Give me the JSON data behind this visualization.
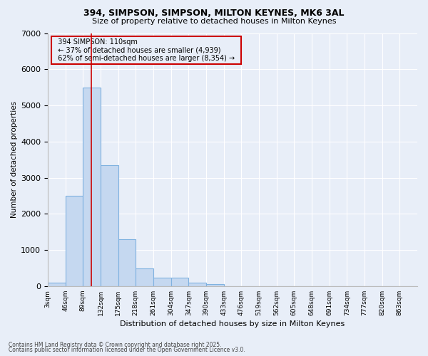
{
  "title_line1": "394, SIMPSON, SIMPSON, MILTON KEYNES, MK6 3AL",
  "title_line2": "Size of property relative to detached houses in Milton Keynes",
  "xlabel": "Distribution of detached houses by size in Milton Keynes",
  "ylabel": "Number of detached properties",
  "annotation_title": "394 SIMPSON: 110sqm",
  "annotation_line2": "← 37% of detached houses are smaller (4,939)",
  "annotation_line3": "62% of semi-detached houses are larger (8,354) →",
  "footer_line1": "Contains HM Land Registry data © Crown copyright and database right 2025.",
  "footer_line2": "Contains public sector information licensed under the Open Government Licence v3.0.",
  "categories": [
    "3sqm",
    "46sqm",
    "89sqm",
    "132sqm",
    "175sqm",
    "218sqm",
    "261sqm",
    "304sqm",
    "347sqm",
    "390sqm",
    "433sqm",
    "476sqm",
    "519sqm",
    "562sqm",
    "605sqm",
    "648sqm",
    "691sqm",
    "734sqm",
    "777sqm",
    "820sqm",
    "863sqm"
  ],
  "bin_left_edges": [
    3,
    46,
    89,
    132,
    175,
    218,
    261,
    304,
    347,
    390,
    433,
    476,
    519,
    562,
    605,
    648,
    691,
    734,
    777,
    820,
    863
  ],
  "bin_width": 43,
  "values": [
    90,
    2500,
    5500,
    3350,
    1300,
    490,
    230,
    230,
    90,
    50,
    0,
    0,
    0,
    0,
    0,
    0,
    0,
    0,
    0,
    0,
    0
  ],
  "bar_color": "#c5d8f0",
  "bar_edge_color": "#7fb2e0",
  "vline_color": "#cc0000",
  "vline_x": 110,
  "annotation_box_color": "#cc0000",
  "background_color": "#e8eef8",
  "grid_color": "#ffffff",
  "ylim": [
    0,
    7000
  ],
  "yticks": [
    0,
    1000,
    2000,
    3000,
    4000,
    5000,
    6000,
    7000
  ]
}
